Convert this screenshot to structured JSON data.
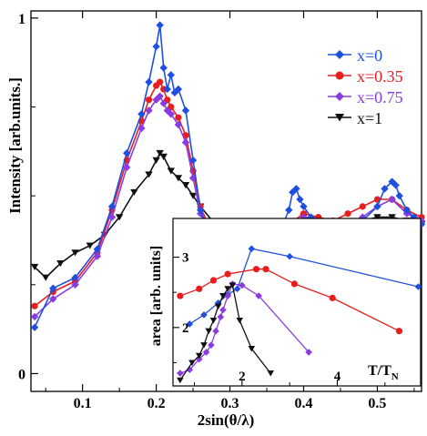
{
  "chart_data": [
    {
      "type": "scatter",
      "xlabel": "2sin(θ/λ)",
      "ylabel": "Intensity [arb.units.]",
      "xlim": [
        0.03,
        0.56
      ],
      "ylim": [
        -0.05,
        1.02
      ],
      "xticks": [
        0.1,
        0.2,
        0.3,
        0.4,
        0.5
      ],
      "xtick_labels": [
        "0.1",
        "0.2",
        "0.3",
        "0.4",
        "0.5"
      ],
      "yticks": [
        0,
        1
      ],
      "ytick_labels": [
        "0",
        "1"
      ],
      "legend_position": "top-right",
      "series": [
        {
          "name": "x=0",
          "color": "#1f4fe0",
          "marker": "diamond",
          "x": [
            0.035,
            0.06,
            0.09,
            0.12,
            0.14,
            0.16,
            0.18,
            0.19,
            0.2,
            0.205,
            0.21,
            0.215,
            0.22,
            0.225,
            0.23,
            0.24,
            0.25,
            0.26,
            0.28,
            0.3,
            0.32,
            0.34,
            0.36,
            0.37,
            0.38,
            0.385,
            0.39,
            0.395,
            0.4,
            0.41,
            0.42,
            0.44,
            0.46,
            0.48,
            0.5,
            0.51,
            0.52,
            0.525,
            0.53,
            0.54,
            0.55,
            0.56
          ],
          "y": [
            0.13,
            0.24,
            0.27,
            0.35,
            0.47,
            0.62,
            0.73,
            0.82,
            0.92,
            0.98,
            0.86,
            0.8,
            0.84,
            0.79,
            0.8,
            0.74,
            0.6,
            0.46,
            0.35,
            0.29,
            0.32,
            0.36,
            0.38,
            0.41,
            0.46,
            0.51,
            0.52,
            0.49,
            0.47,
            0.44,
            0.42,
            0.4,
            0.41,
            0.43,
            0.47,
            0.52,
            0.54,
            0.53,
            0.5,
            0.46,
            0.44,
            0.42
          ]
        },
        {
          "name": "x=0.35",
          "color": "#e81e1e",
          "marker": "circle",
          "x": [
            0.035,
            0.06,
            0.09,
            0.12,
            0.14,
            0.16,
            0.18,
            0.19,
            0.2,
            0.205,
            0.21,
            0.215,
            0.22,
            0.23,
            0.24,
            0.25,
            0.26,
            0.28,
            0.3,
            0.32,
            0.34,
            0.36,
            0.38,
            0.4,
            0.42,
            0.44,
            0.46,
            0.48,
            0.5,
            0.52,
            0.54,
            0.56
          ],
          "y": [
            0.19,
            0.23,
            0.26,
            0.34,
            0.46,
            0.6,
            0.71,
            0.77,
            0.81,
            0.82,
            0.8,
            0.77,
            0.75,
            0.72,
            0.67,
            0.57,
            0.47,
            0.37,
            0.33,
            0.34,
            0.37,
            0.4,
            0.42,
            0.45,
            0.44,
            0.43,
            0.45,
            0.47,
            0.49,
            0.49,
            0.46,
            0.44
          ]
        },
        {
          "name": "x=0.75",
          "color": "#8a3ce0",
          "marker": "diamond",
          "x": [
            0.035,
            0.06,
            0.09,
            0.12,
            0.14,
            0.16,
            0.18,
            0.19,
            0.2,
            0.205,
            0.21,
            0.215,
            0.22,
            0.23,
            0.24,
            0.25,
            0.26,
            0.28,
            0.3,
            0.32,
            0.34,
            0.36,
            0.38,
            0.4,
            0.42,
            0.44,
            0.46,
            0.48,
            0.5,
            0.52,
            0.54,
            0.56
          ],
          "y": [
            0.16,
            0.21,
            0.25,
            0.33,
            0.44,
            0.58,
            0.69,
            0.74,
            0.77,
            0.78,
            0.76,
            0.74,
            0.73,
            0.7,
            0.65,
            0.55,
            0.45,
            0.36,
            0.31,
            0.32,
            0.35,
            0.38,
            0.41,
            0.44,
            0.42,
            0.4,
            0.42,
            0.44,
            0.47,
            0.49,
            0.45,
            0.43
          ]
        },
        {
          "name": "x=1",
          "color": "#111111",
          "marker": "triangle-down",
          "x": [
            0.035,
            0.05,
            0.07,
            0.09,
            0.11,
            0.13,
            0.15,
            0.17,
            0.19,
            0.2,
            0.205,
            0.21,
            0.22,
            0.23,
            0.24,
            0.25,
            0.26,
            0.28,
            0.3,
            0.32,
            0.34,
            0.36,
            0.38,
            0.4,
            0.42,
            0.44,
            0.46,
            0.48,
            0.5,
            0.52,
            0.54,
            0.56
          ],
          "y": [
            0.3,
            0.27,
            0.31,
            0.34,
            0.36,
            0.39,
            0.44,
            0.51,
            0.56,
            0.6,
            0.62,
            0.61,
            0.57,
            0.55,
            0.53,
            0.5,
            0.47,
            0.42,
            0.39,
            0.38,
            0.4,
            0.41,
            0.42,
            0.44,
            0.43,
            0.42,
            0.42,
            0.43,
            0.44,
            0.44,
            0.43,
            0.42
          ]
        }
      ]
    },
    {
      "type": "line",
      "xlabel": "T/T",
      "xlabel_subscript": "N",
      "ylabel": "area [arb. units]",
      "xlim": [
        0.55,
        5.75
      ],
      "ylim": [
        1.17,
        3.55
      ],
      "xticks": [
        2,
        4
      ],
      "xtick_labels": [
        "2",
        "4"
      ],
      "yticks": [
        2,
        3
      ],
      "ytick_labels": [
        "2",
        "3"
      ],
      "series": [
        {
          "color": "#1f4fe0",
          "marker": "diamond",
          "x": [
            0.9,
            1.2,
            1.5,
            1.7,
            1.9,
            2.2,
            3.0,
            5.7
          ],
          "y": [
            2.05,
            2.18,
            2.35,
            2.47,
            2.55,
            3.12,
            3.01,
            2.58
          ]
        },
        {
          "color": "#e81e1e",
          "marker": "circle",
          "x": [
            0.7,
            1.1,
            1.4,
            1.7,
            2.3,
            2.5,
            3.1,
            3.9,
            5.3
          ],
          "y": [
            2.45,
            2.55,
            2.67,
            2.76,
            2.83,
            2.83,
            2.62,
            2.42,
            1.95
          ]
        },
        {
          "color": "#8a3ce0",
          "marker": "diamond",
          "x": [
            0.7,
            0.9,
            1.1,
            1.25,
            1.35,
            1.45,
            1.55,
            1.6,
            1.7,
            1.8,
            2.0,
            2.35,
            3.4
          ],
          "y": [
            1.35,
            1.4,
            1.55,
            1.65,
            1.75,
            1.95,
            2.15,
            2.25,
            2.45,
            2.62,
            2.6,
            2.45,
            1.65
          ]
        },
        {
          "color": "#111111",
          "marker": "triangle-down",
          "x": [
            0.7,
            0.95,
            1.1,
            1.2,
            1.3,
            1.4,
            1.5,
            1.6,
            1.7,
            1.8,
            1.95,
            2.2,
            2.6
          ],
          "y": [
            1.25,
            1.5,
            1.6,
            1.75,
            1.95,
            2.1,
            2.3,
            2.45,
            2.55,
            2.6,
            2.1,
            1.7,
            1.35
          ]
        }
      ]
    }
  ]
}
